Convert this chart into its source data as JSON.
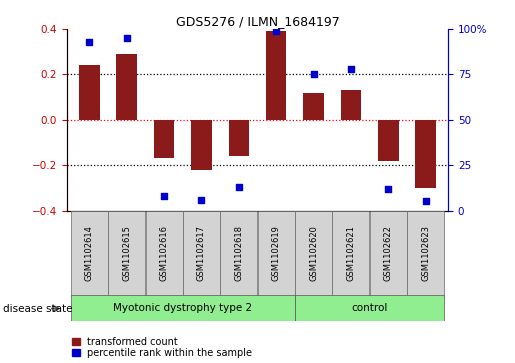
{
  "title": "GDS5276 / ILMN_1684197",
  "samples": [
    "GSM1102614",
    "GSM1102615",
    "GSM1102616",
    "GSM1102617",
    "GSM1102618",
    "GSM1102619",
    "GSM1102620",
    "GSM1102621",
    "GSM1102622",
    "GSM1102623"
  ],
  "transformed_count": [
    0.24,
    0.29,
    -0.17,
    -0.22,
    -0.16,
    0.39,
    0.12,
    0.13,
    -0.18,
    -0.3
  ],
  "percentile_rank": [
    93,
    95,
    8,
    6,
    13,
    99,
    75,
    78,
    12,
    5
  ],
  "group1_samples": 6,
  "group2_samples": 4,
  "group1_label": "Myotonic dystrophy type 2",
  "group2_label": "control",
  "group_color": "#90EE90",
  "sample_box_color": "#D3D3D3",
  "bar_color": "#8B1A1A",
  "dot_color": "#0000CD",
  "left_axis_color": "#CC0000",
  "right_axis_color": "#0000CC",
  "ylim_left": [
    -0.4,
    0.4
  ],
  "ylim_right": [
    0,
    100
  ],
  "yticks_left": [
    -0.4,
    -0.2,
    0.0,
    0.2,
    0.4
  ],
  "yticks_right": [
    0,
    25,
    50,
    75,
    100
  ],
  "ytick_labels_right": [
    "0",
    "25",
    "50",
    "75",
    "100%"
  ],
  "bar_width": 0.55,
  "dot_size": 22,
  "hline_dotted_vals": [
    0.2,
    -0.2
  ],
  "hline_red_val": 0.0,
  "legend_items": [
    {
      "label": "transformed count",
      "color": "#8B1A1A"
    },
    {
      "label": "percentile rank within the sample",
      "color": "#0000CD"
    }
  ],
  "disease_state_label": "disease state",
  "title_fontsize": 9,
  "tick_fontsize": 7.5,
  "sample_fontsize": 6,
  "disease_fontsize": 7.5,
  "legend_fontsize": 7
}
